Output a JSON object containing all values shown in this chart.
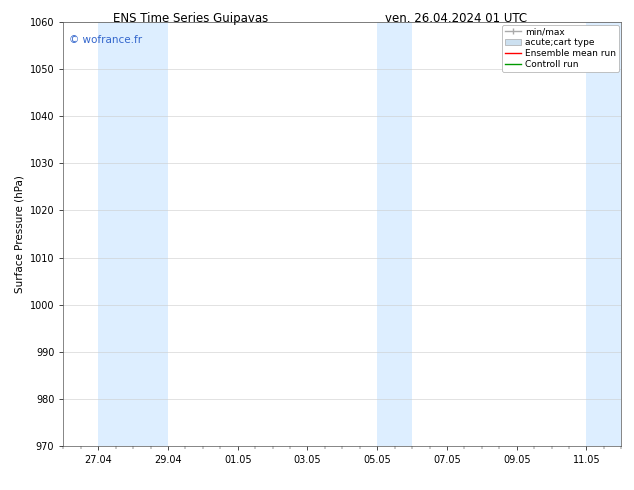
{
  "title_left": "ENS Time Series Guipavas",
  "title_right": "ven. 26.04.2024 01 UTC",
  "ylabel": "Surface Pressure (hPa)",
  "ylim": [
    970,
    1060
  ],
  "yticks": [
    970,
    980,
    990,
    1000,
    1010,
    1020,
    1030,
    1040,
    1050,
    1060
  ],
  "xlim": [
    0,
    16
  ],
  "xtick_labels": [
    "27.04",
    "29.04",
    "01.05",
    "03.05",
    "05.05",
    "07.05",
    "09.05",
    "11.05"
  ],
  "xtick_positions": [
    1,
    3,
    5,
    7,
    9,
    11,
    13,
    15
  ],
  "shaded_bands": [
    {
      "x_start": 1,
      "x_end": 3
    },
    {
      "x_start": 9,
      "x_end": 10
    },
    {
      "x_start": 15,
      "x_end": 16
    }
  ],
  "band_color": "#ddeeff",
  "background_color": "#ffffff",
  "watermark_text": "© wofrance.fr",
  "watermark_color": "#3366cc",
  "legend_entries": [
    "min/max",
    "acute;cart type",
    "Ensemble mean run",
    "Controll run"
  ],
  "title_fontsize": 8.5,
  "ylabel_fontsize": 7.5,
  "tick_fontsize": 7,
  "watermark_fontsize": 7.5,
  "legend_fontsize": 6.5
}
